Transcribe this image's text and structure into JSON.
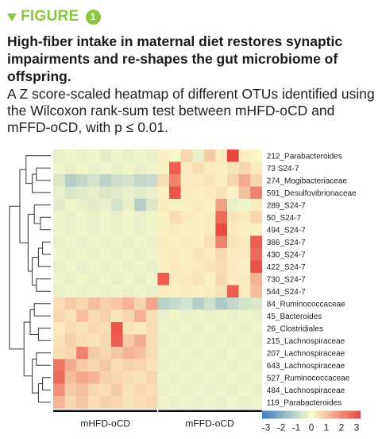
{
  "figure": {
    "label": "FIGURE",
    "number": "1",
    "accent_color": "#8cc63f"
  },
  "title": "High-fiber intake in maternal diet restores synaptic impairments and re-shapes the gut microbiome of offspring.",
  "caption": "A Z score-scaled heatmap of different OTUs identified using the Wilcoxon rank-sum test between mHFD-oCD and mFFD-oCD, with p ≤ 0.01.",
  "chart_data": {
    "type": "heatmap",
    "rows": [
      "212_Parabacteroides",
      "73 S24-7",
      "274_Mogibacteriaceae",
      "591_Desulfovibrionaceae",
      "289_S24-7",
      "50_S24-7",
      "494_S24-7",
      "386_S24-7",
      "430_S24-7",
      "422_S24-7",
      "730_S24-7",
      "544_S24-7",
      "84_Ruminococcaceae",
      "45_Bacteroides",
      "26_Clostridiales",
      "215_Lachnospiraceae",
      "207_Lachnospiraceae",
      "643_Lachnospiraceae",
      "527_Ruminococcaceae",
      "484_Lachnospiraceae",
      "119_Parabacteroides"
    ],
    "groups": [
      "mHFD-oCD",
      "mFFD-oCD"
    ],
    "columns_per_group": 9,
    "legend_ticks": [
      "-3",
      "-2",
      "-1",
      "0",
      "1",
      "2",
      "3"
    ],
    "scale": [
      -3,
      3
    ],
    "colors": {
      "low": "#3a7ec2",
      "mid": "#fcfccc",
      "high": "#e8453c"
    },
    "values": [
      [
        -0.3,
        -0.2,
        -0.3,
        -0.2,
        -0.4,
        -0.2,
        -0.3,
        -0.2,
        -0.3,
        0.2,
        0.1,
        0.6,
        -0.3,
        0.8,
        0.3,
        3.0,
        0.2,
        0.1
      ],
      [
        -0.2,
        -0.3,
        -0.2,
        -0.3,
        -0.2,
        -0.3,
        -0.2,
        -0.3,
        -0.2,
        0.2,
        2.6,
        0.3,
        0.5,
        0.3,
        0.2,
        0.4,
        0.6,
        0.3
      ],
      [
        -0.5,
        -1.1,
        -0.9,
        -0.6,
        -1.0,
        -0.7,
        -0.6,
        -0.9,
        -0.8,
        0.5,
        2.0,
        0.3,
        0.3,
        0.4,
        0.2,
        0.6,
        1.3,
        0.6
      ],
      [
        -0.3,
        -0.5,
        -0.4,
        -0.3,
        -0.5,
        -0.4,
        -0.3,
        -0.4,
        -0.3,
        0.2,
        2.7,
        0.3,
        0.2,
        0.3,
        0.4,
        0.2,
        1.0,
        2.0
      ],
      [
        -0.4,
        -0.2,
        -0.3,
        -0.4,
        -0.3,
        -0.6,
        -0.3,
        -1.1,
        -0.5,
        0.3,
        0.2,
        0.2,
        0.3,
        0.2,
        1.5,
        -0.3,
        -0.2,
        0.3
      ],
      [
        -0.2,
        -0.3,
        -0.2,
        -0.3,
        -0.2,
        -0.3,
        -0.2,
        -0.3,
        -0.2,
        0.2,
        0.5,
        0.3,
        0.2,
        0.3,
        2.4,
        0.4,
        0.3,
        0.6
      ],
      [
        -0.2,
        -0.3,
        -0.2,
        -0.3,
        -0.2,
        -0.3,
        -0.2,
        -0.3,
        -0.2,
        0.2,
        0.3,
        0.2,
        0.2,
        0.3,
        2.9,
        0.3,
        0.2,
        0.2
      ],
      [
        -0.3,
        -0.2,
        -0.3,
        -0.2,
        -0.3,
        -0.2,
        -0.3,
        -0.2,
        -0.3,
        0.3,
        0.2,
        0.3,
        0.2,
        0.5,
        2.0,
        0.4,
        0.3,
        2.6
      ],
      [
        -0.2,
        -0.3,
        -0.2,
        -0.3,
        -0.2,
        -0.3,
        -0.2,
        -0.3,
        -0.2,
        0.2,
        0.3,
        0.2,
        0.4,
        0.3,
        0.6,
        0.3,
        0.3,
        2.4
      ],
      [
        -0.3,
        -0.2,
        -0.3,
        -0.2,
        -0.3,
        -0.2,
        -0.3,
        -0.2,
        -0.3,
        0.2,
        0.3,
        0.2,
        0.3,
        0.4,
        0.5,
        0.3,
        0.2,
        2.8
      ],
      [
        -0.2,
        -0.3,
        -0.2,
        -0.3,
        -0.2,
        -0.3,
        -0.2,
        -0.3,
        -0.2,
        2.6,
        0.3,
        0.3,
        0.4,
        0.2,
        0.6,
        0.3,
        0.3,
        1.2
      ],
      [
        -0.3,
        -0.2,
        -0.3,
        -0.2,
        -0.3,
        -0.2,
        -0.3,
        -0.2,
        -0.3,
        0.3,
        0.2,
        0.3,
        0.2,
        0.3,
        0.4,
        2.6,
        0.3,
        1.0
      ],
      [
        0.5,
        0.8,
        0.6,
        1.0,
        0.7,
        0.9,
        1.2,
        0.6,
        1.4,
        -1.0,
        -0.8,
        -0.6,
        -1.1,
        -0.7,
        -1.2,
        -0.9,
        -0.6,
        -0.5
      ],
      [
        0.6,
        0.4,
        1.0,
        0.5,
        0.7,
        0.4,
        0.6,
        1.2,
        0.5,
        -0.3,
        -0.2,
        -0.3,
        -0.2,
        -0.3,
        -0.2,
        -0.3,
        -0.2,
        -0.3
      ],
      [
        0.3,
        0.5,
        0.4,
        0.6,
        0.5,
        2.7,
        0.4,
        0.3,
        0.5,
        -0.2,
        -0.3,
        -0.2,
        -0.3,
        -0.2,
        -0.3,
        -0.2,
        -0.3,
        -0.2
      ],
      [
        0.4,
        0.7,
        0.5,
        0.4,
        0.6,
        2.6,
        0.8,
        1.3,
        0.5,
        -0.3,
        -0.2,
        -0.3,
        -0.2,
        -0.3,
        -0.2,
        -0.3,
        -0.2,
        -0.3
      ],
      [
        0.5,
        0.6,
        2.0,
        0.8,
        0.6,
        0.9,
        1.2,
        1.0,
        0.5,
        -0.2,
        -0.3,
        -0.2,
        -0.3,
        -0.2,
        -0.3,
        -0.2,
        -0.3,
        -0.2
      ],
      [
        2.2,
        1.3,
        0.8,
        0.6,
        0.9,
        0.5,
        0.7,
        0.6,
        0.4,
        -0.3,
        -0.2,
        -0.3,
        -0.2,
        -0.3,
        -0.2,
        -0.3,
        -0.2,
        -0.3
      ],
      [
        2.4,
        1.0,
        1.4,
        1.2,
        0.7,
        0.6,
        0.5,
        0.4,
        0.6,
        -0.2,
        -0.3,
        -0.2,
        -0.3,
        -0.2,
        -0.3,
        -0.2,
        -0.3,
        -0.2
      ],
      [
        1.8,
        0.8,
        1.0,
        0.6,
        0.5,
        0.8,
        0.4,
        0.6,
        0.5,
        -0.3,
        -0.2,
        -0.3,
        -0.2,
        -0.3,
        -0.2,
        -0.3,
        -0.2,
        -0.3
      ],
      [
        1.2,
        0.6,
        0.9,
        0.5,
        0.7,
        0.6,
        0.4,
        0.5,
        0.6,
        -0.2,
        -0.3,
        -0.2,
        -0.3,
        -0.2,
        -0.3,
        -0.2,
        -0.3,
        -0.2
      ]
    ]
  }
}
